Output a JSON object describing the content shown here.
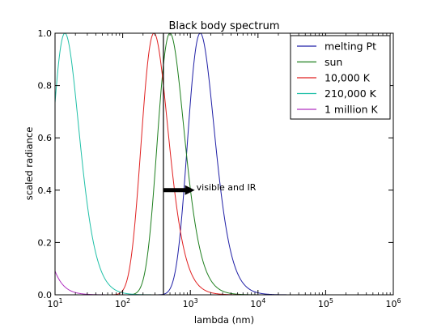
{
  "chart_data": {
    "type": "line",
    "title": "Black body spectrum",
    "xlabel": "lambda (nm)",
    "ylabel": "scaled radiance",
    "xscale": "log",
    "xlim": [
      10,
      1000000
    ],
    "ylim": [
      0.0,
      1.0
    ],
    "x_ticks": [
      {
        "value": 10,
        "mantissa": "10",
        "exp": "1"
      },
      {
        "value": 100,
        "mantissa": "10",
        "exp": "2"
      },
      {
        "value": 1000,
        "mantissa": "10",
        "exp": "3"
      },
      {
        "value": 10000,
        "mantissa": "10",
        "exp": "4"
      },
      {
        "value": 100000,
        "mantissa": "10",
        "exp": "5"
      },
      {
        "value": 1000000,
        "mantissa": "10",
        "exp": "6"
      }
    ],
    "y_ticks": [
      {
        "value": 0.0,
        "label": "0.0"
      },
      {
        "value": 0.2,
        "label": "0.2"
      },
      {
        "value": 0.4,
        "label": "0.4"
      },
      {
        "value": 0.6,
        "label": "0.6"
      },
      {
        "value": 0.8,
        "label": "0.8"
      },
      {
        "value": 1.0,
        "label": "1.0"
      }
    ],
    "grid": false,
    "legend_position": "top-right",
    "series": [
      {
        "name": "melting Pt",
        "color": "#1f1fa6",
        "peak_nm": 1400
      },
      {
        "name": "sun",
        "color": "#1e7f1e",
        "peak_nm": 500
      },
      {
        "name": "10,000 K",
        "color": "#e02020",
        "peak_nm": 290
      },
      {
        "name": "210,000 K",
        "color": "#20c0a8",
        "peak_nm": 14
      },
      {
        "name": "1 million K",
        "color": "#b030c0",
        "peak_nm": 2.9
      }
    ],
    "vline": {
      "x": 400,
      "color": "#000000"
    },
    "annotation": {
      "text": "visible and IR",
      "arrow_from_x": 400,
      "arrow_to_x": 1100,
      "y": 0.4
    }
  }
}
